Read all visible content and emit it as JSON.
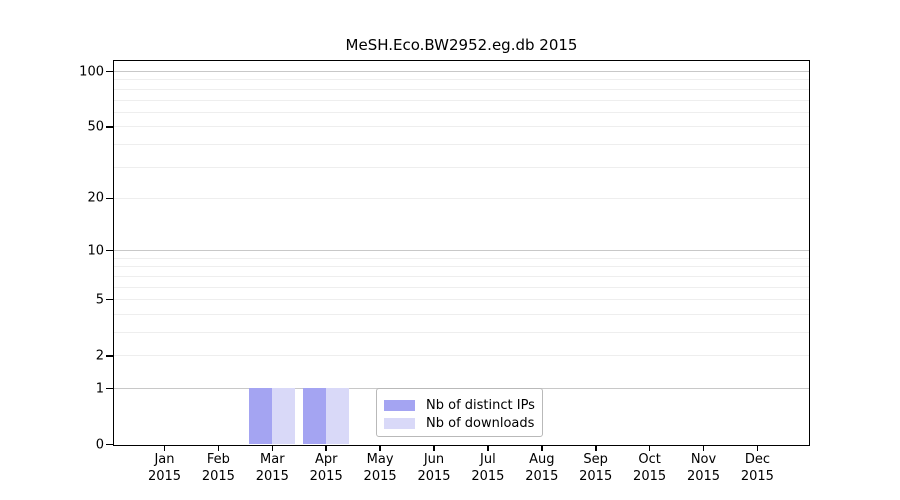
{
  "chart_data": {
    "type": "bar",
    "title": "MeSH.Eco.BW2952.eg.db 2015",
    "categories": [
      "Jan",
      "Feb",
      "Mar",
      "Apr",
      "May",
      "Jun",
      "Jul",
      "Aug",
      "Sep",
      "Oct",
      "Nov",
      "Dec"
    ],
    "x_year": "2015",
    "series": [
      {
        "name": "Nb of distinct IPs",
        "color": "#a4a4f2",
        "values": [
          0,
          0,
          1,
          1,
          0,
          0,
          0,
          0,
          0,
          0,
          0,
          0
        ]
      },
      {
        "name": "Nb of downloads",
        "color": "#d9d9f8",
        "values": [
          0,
          0,
          1,
          1,
          0,
          0,
          0,
          0,
          0,
          0,
          0,
          0
        ]
      }
    ],
    "y_ticks": [
      0,
      1,
      2,
      5,
      10,
      20,
      50,
      100
    ],
    "y_scale": "log10(value+1)",
    "ylim": [
      0,
      115
    ],
    "xlabel": "",
    "ylabel": "",
    "grid": {
      "major_values": [
        1,
        10,
        100
      ],
      "minor_values": [
        2,
        3,
        4,
        5,
        6,
        7,
        8,
        9,
        20,
        30,
        40,
        50,
        60,
        70,
        80,
        90
      ],
      "major_color": "#c8c8c8",
      "minor_color": "#eeeeee"
    },
    "legend": {
      "position": "lower center"
    },
    "axis_color": "#000000",
    "background": "#ffffff"
  }
}
